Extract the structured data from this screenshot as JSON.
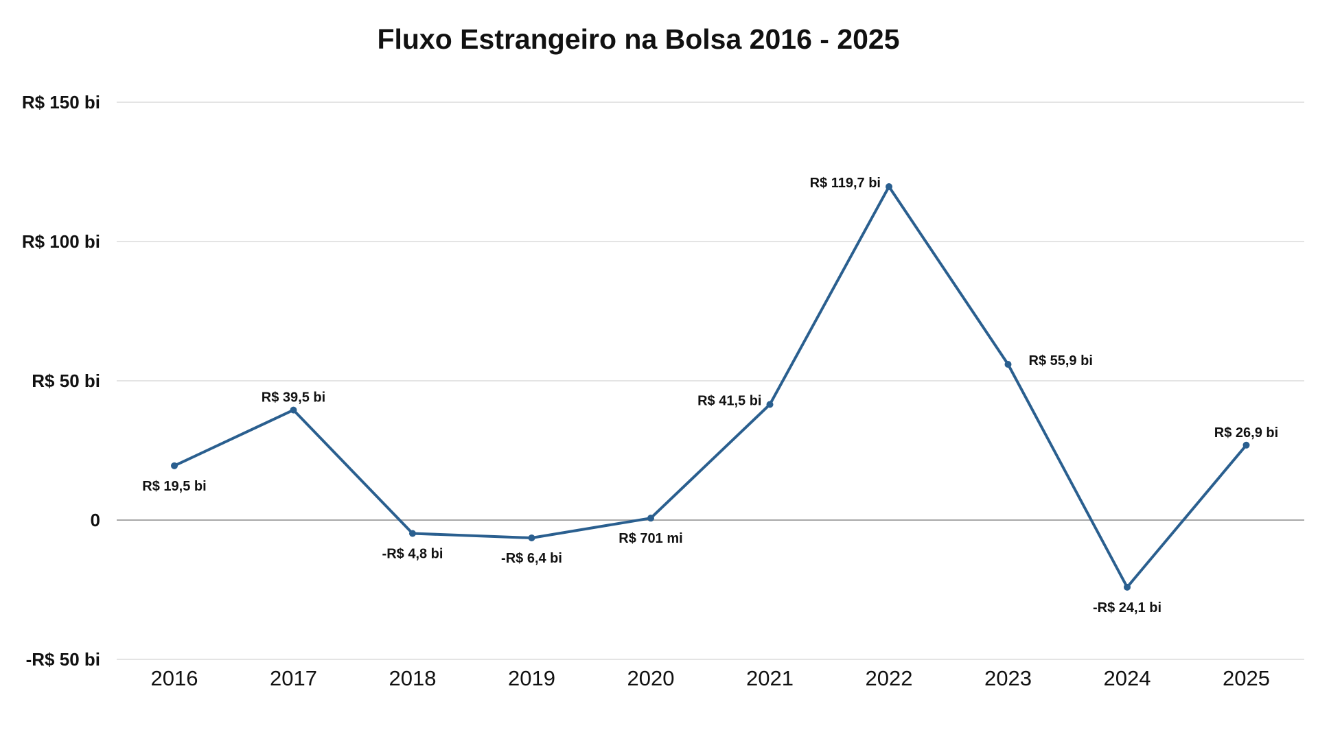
{
  "chart_data": {
    "type": "line",
    "title": "Fluxo Estrangeiro na Bolsa 2016 - 2025",
    "categories": [
      "2016",
      "2017",
      "2018",
      "2019",
      "2020",
      "2021",
      "2022",
      "2023",
      "2024",
      "2025"
    ],
    "series": [
      {
        "values": [
          19.5,
          39.5,
          -4.8,
          -6.4,
          0.701,
          41.5,
          119.7,
          55.9,
          -24.1,
          26.9
        ],
        "labels": [
          "R$ 19,5 bi",
          "R$ 39,5 bi",
          "-R$ 4,8 bi",
          "-R$ 6,4 bi",
          "R$ 701 mi",
          "R$ 41,5 bi",
          "R$ 119,7 bi",
          "R$ 55,9 bi",
          "-R$ 24,1 bi",
          "R$ 26,9 bi"
        ],
        "label_positions": [
          "below",
          "above",
          "below",
          "below",
          "below",
          "left",
          "left",
          "right",
          "below",
          "above"
        ],
        "color": "#2a5f8f"
      }
    ],
    "ylim": [
      -50,
      150
    ],
    "yticks": [
      {
        "value": 150,
        "label": "R$ 150 bi"
      },
      {
        "value": 100,
        "label": "R$ 100 bi"
      },
      {
        "value": 50,
        "label": "R$ 50 bi"
      },
      {
        "value": 0,
        "label": "0"
      },
      {
        "value": -50,
        "label": "-R$ 50 bi"
      }
    ],
    "grid": true,
    "xlabel": "",
    "ylabel": "",
    "colors": {
      "line": "#2a5f8f",
      "grid": "#d4d4d4",
      "zero_line": "#a8a8a8"
    }
  }
}
